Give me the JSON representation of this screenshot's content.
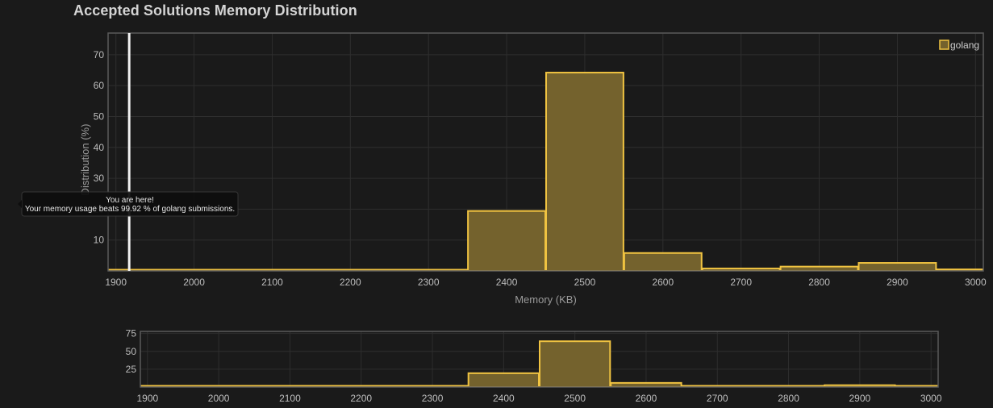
{
  "title": "Accepted Solutions Memory Distribution",
  "colors": {
    "background": "#1a1a1a",
    "bar_fill": "#74622d",
    "bar_stroke": "#f0c341",
    "marker": "#f2f2f2",
    "tooltip_bg": "#0e0e0e"
  },
  "tooltip": {
    "line1": "You are here!",
    "line2": "Your memory usage beats 99.92 % of golang submissions."
  },
  "chart_data": [
    {
      "type": "bar",
      "title": "",
      "xlabel": "Memory (KB)",
      "ylabel": "Distribution (%)",
      "xlim": [
        1890,
        3010
      ],
      "ylim": [
        0,
        77
      ],
      "xticks": [
        1900,
        2000,
        2100,
        2200,
        2300,
        2400,
        2500,
        2600,
        2700,
        2800,
        2900,
        3000
      ],
      "yticks": [
        10,
        20,
        30,
        40,
        50,
        60,
        70
      ],
      "grid": true,
      "legend": "top-right",
      "marker_x": 1917,
      "series": [
        {
          "name": "golang",
          "bins": [
            {
              "x0": 1850,
              "x1": 1950,
              "value": 0.1
            },
            {
              "x0": 1950,
              "x1": 2050,
              "value": 0.2
            },
            {
              "x0": 2050,
              "x1": 2350,
              "value": 0
            },
            {
              "x0": 2350,
              "x1": 2450,
              "value": 19.4
            },
            {
              "x0": 2450,
              "x1": 2550,
              "value": 64.2
            },
            {
              "x0": 2550,
              "x1": 2650,
              "value": 5.8
            },
            {
              "x0": 2650,
              "x1": 2750,
              "value": 0.8
            },
            {
              "x0": 2750,
              "x1": 2850,
              "value": 1.4
            },
            {
              "x0": 2850,
              "x1": 2950,
              "value": 2.6
            },
            {
              "x0": 2950,
              "x1": 3050,
              "value": 0.5
            }
          ]
        }
      ]
    },
    {
      "type": "bar",
      "title": "",
      "xlabel": "",
      "ylabel": "",
      "xlim": [
        1890,
        3010
      ],
      "ylim": [
        0,
        78
      ],
      "xticks": [
        1900,
        2000,
        2100,
        2200,
        2300,
        2400,
        2500,
        2600,
        2700,
        2800,
        2900,
        3000
      ],
      "yticks": [
        25,
        50,
        75
      ],
      "grid": true,
      "series": [
        {
          "name": "golang",
          "bins": [
            {
              "x0": 1850,
              "x1": 1950,
              "value": 0.1
            },
            {
              "x0": 1950,
              "x1": 2050,
              "value": 0.2
            },
            {
              "x0": 2050,
              "x1": 2350,
              "value": 0
            },
            {
              "x0": 2350,
              "x1": 2450,
              "value": 19.4
            },
            {
              "x0": 2450,
              "x1": 2550,
              "value": 64.2
            },
            {
              "x0": 2550,
              "x1": 2650,
              "value": 5.8
            },
            {
              "x0": 2650,
              "x1": 2750,
              "value": 0.8
            },
            {
              "x0": 2750,
              "x1": 2850,
              "value": 1.4
            },
            {
              "x0": 2850,
              "x1": 2950,
              "value": 2.6
            },
            {
              "x0": 2950,
              "x1": 3050,
              "value": 0.5
            }
          ]
        }
      ]
    }
  ]
}
